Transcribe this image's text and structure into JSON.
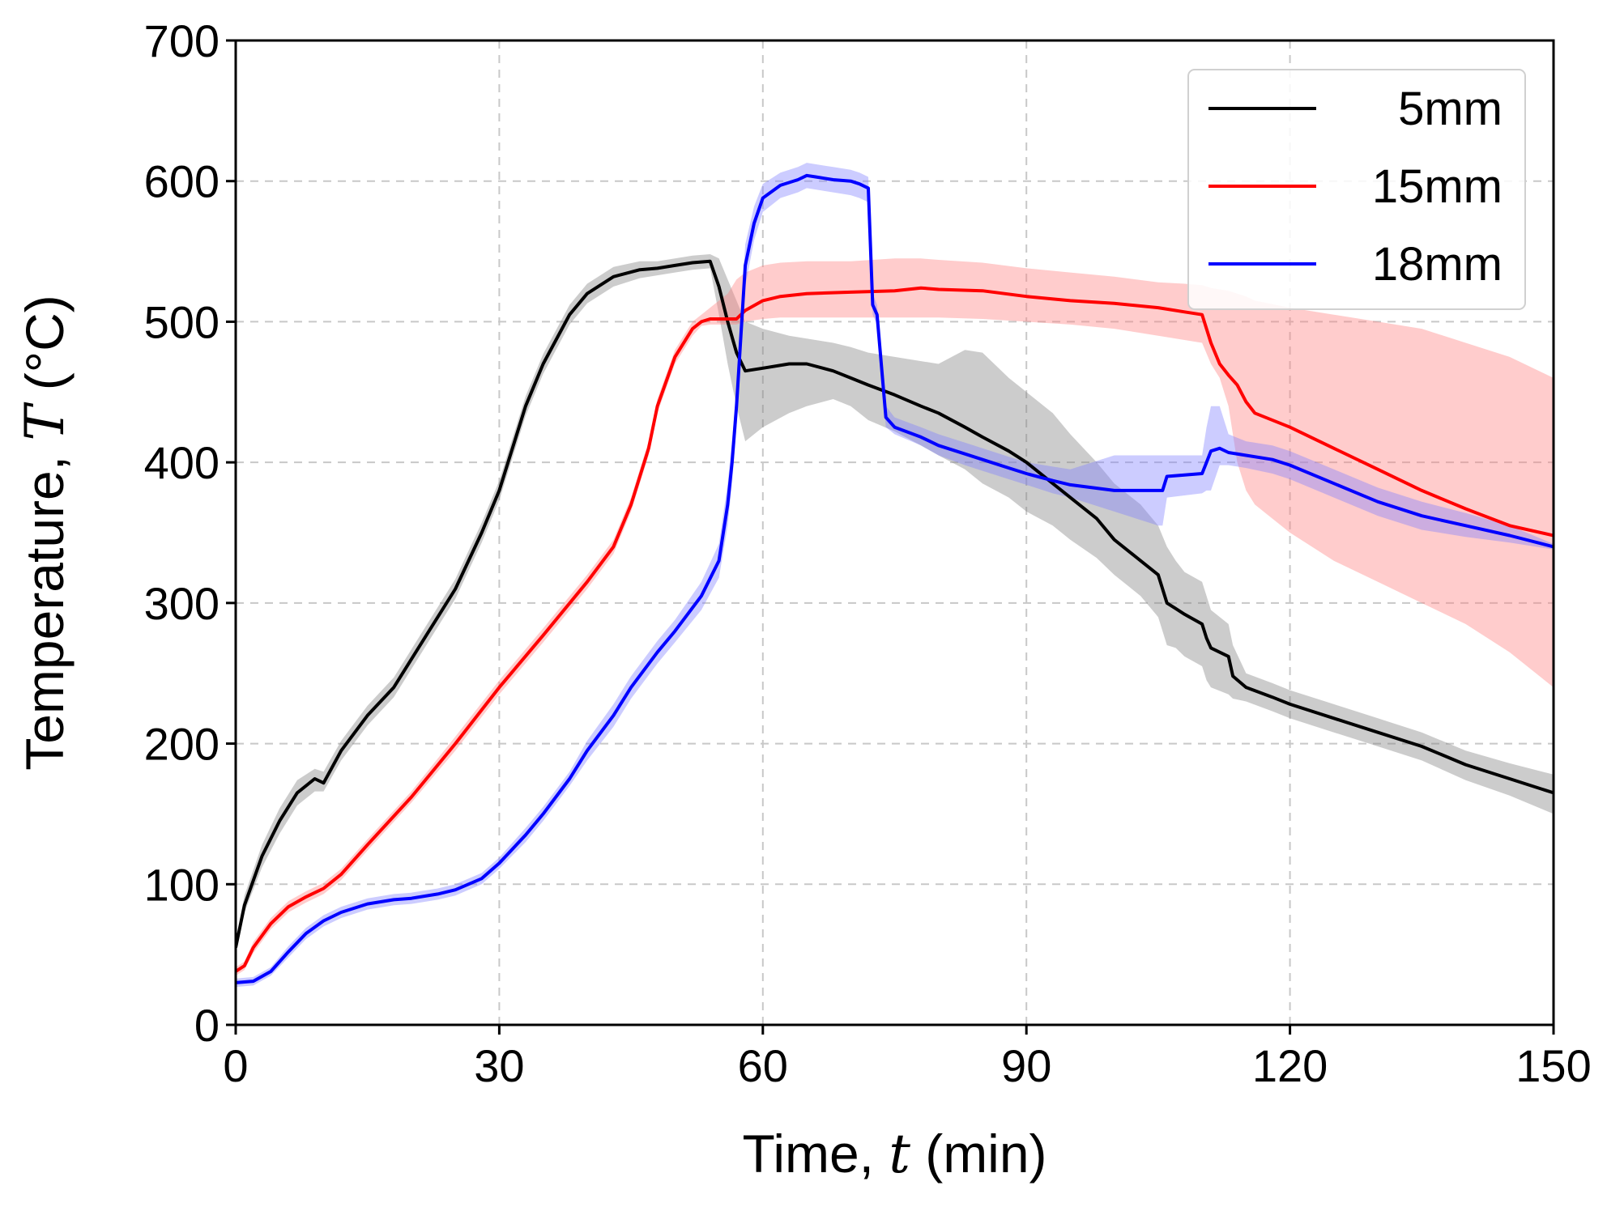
{
  "chart_data": {
    "type": "line",
    "title": "",
    "xlabel": "Time, ",
    "xlabel_symbol": "t",
    "xlabel_unit": " (min)",
    "ylabel": "Temperature, ",
    "ylabel_symbol": "T",
    "ylabel_unit": " (°C)",
    "xlim": [
      0,
      150
    ],
    "ylim": [
      0,
      700
    ],
    "xticks": [
      0,
      30,
      60,
      90,
      120,
      150
    ],
    "yticks": [
      0,
      100,
      200,
      300,
      400,
      500,
      600,
      700
    ],
    "grid": true,
    "legend_position": "top-right",
    "series": [
      {
        "name": "5mm",
        "color": "#000000",
        "band_color": "#808080",
        "x": [
          0,
          1,
          3,
          5,
          7,
          9,
          10,
          12,
          15,
          18,
          20,
          22,
          25,
          28,
          30,
          33,
          35,
          38,
          40,
          43,
          46,
          48,
          50,
          52,
          54,
          55,
          56,
          57,
          58,
          60,
          63,
          65,
          68,
          70,
          72,
          75,
          78,
          80,
          83,
          85,
          88,
          90,
          93,
          95,
          98,
          100,
          103,
          105,
          106,
          107,
          108,
          110,
          110.5,
          111,
          113,
          113.5,
          115,
          118,
          120,
          125,
          130,
          135,
          140,
          145,
          150
        ],
        "y": [
          55,
          85,
          120,
          145,
          165,
          175,
          172,
          195,
          220,
          240,
          260,
          280,
          310,
          350,
          380,
          440,
          470,
          505,
          520,
          532,
          537,
          538,
          540,
          542,
          543,
          525,
          500,
          478,
          465,
          467,
          470,
          470,
          465,
          460,
          455,
          448,
          440,
          435,
          425,
          418,
          408,
          400,
          385,
          375,
          360,
          345,
          330,
          320,
          300,
          296,
          292,
          285,
          275,
          268,
          262,
          248,
          240,
          233,
          228,
          218,
          208,
          198,
          185,
          175,
          165
        ],
        "lower": [
          50,
          80,
          112,
          136,
          156,
          166,
          166,
          188,
          213,
          233,
          253,
          273,
          303,
          343,
          373,
          433,
          463,
          498,
          513,
          525,
          531,
          533,
          535,
          537,
          538,
          505,
          470,
          440,
          415,
          425,
          435,
          440,
          445,
          440,
          430,
          422,
          412,
          405,
          395,
          385,
          375,
          365,
          355,
          345,
          332,
          320,
          305,
          290,
          270,
          268,
          262,
          255,
          245,
          240,
          235,
          232,
          230,
          223,
          218,
          208,
          198,
          188,
          174,
          163,
          150
        ],
        "upper": [
          60,
          92,
          128,
          154,
          174,
          182,
          180,
          202,
          227,
          247,
          267,
          287,
          317,
          357,
          387,
          447,
          477,
          512,
          527,
          539,
          543,
          543,
          545,
          547,
          548,
          545,
          530,
          515,
          500,
          495,
          490,
          488,
          485,
          482,
          478,
          475,
          472,
          470,
          480,
          478,
          460,
          450,
          435,
          420,
          400,
          385,
          370,
          355,
          340,
          330,
          322,
          315,
          305,
          295,
          285,
          270,
          250,
          243,
          238,
          228,
          218,
          208,
          195,
          186,
          178
        ]
      },
      {
        "name": "15mm",
        "color": "#ff0000",
        "band_color": "#ff8080",
        "x": [
          0,
          1,
          2,
          4,
          6,
          8,
          10,
          12,
          15,
          20,
          25,
          30,
          35,
          40,
          43,
          45,
          47,
          48,
          50,
          52,
          53,
          54,
          55,
          56,
          57,
          58,
          60,
          62,
          65,
          70,
          75,
          78,
          80,
          85,
          90,
          95,
          100,
          105,
          108,
          110,
          111,
          112,
          113,
          114,
          115,
          116,
          120,
          125,
          130,
          135,
          140,
          145,
          150
        ],
        "y": [
          38,
          42,
          55,
          72,
          84,
          91,
          97,
          107,
          128,
          162,
          200,
          240,
          277,
          315,
          340,
          370,
          410,
          440,
          475,
          495,
          500,
          502,
          502,
          502,
          502,
          508,
          515,
          518,
          520,
          521,
          522,
          524,
          523,
          522,
          518,
          515,
          513,
          510,
          507,
          505,
          485,
          470,
          462,
          455,
          443,
          435,
          425,
          410,
          395,
          380,
          367,
          355,
          348
        ],
        "lower": [
          35,
          39,
          51,
          68,
          80,
          87,
          93,
          103,
          124,
          158,
          195,
          235,
          272,
          310,
          335,
          365,
          405,
          435,
          470,
          490,
          497,
          498,
          498,
          498,
          498,
          500,
          502,
          503,
          503,
          503,
          503,
          503,
          503,
          502,
          500,
          498,
          495,
          490,
          487,
          485,
          470,
          460,
          440,
          400,
          380,
          370,
          350,
          330,
          315,
          300,
          285,
          265,
          240
        ],
        "upper": [
          41,
          45,
          59,
          76,
          88,
          95,
          101,
          111,
          132,
          166,
          205,
          245,
          282,
          320,
          345,
          375,
          415,
          445,
          480,
          500,
          505,
          510,
          515,
          520,
          530,
          535,
          540,
          542,
          543,
          543,
          545,
          545,
          544,
          542,
          538,
          535,
          532,
          528,
          527,
          526,
          524,
          523,
          522,
          520,
          518,
          515,
          510,
          505,
          500,
          495,
          485,
          475,
          460
        ]
      },
      {
        "name": "18mm",
        "color": "#0000ff",
        "band_color": "#8080ff",
        "x": [
          0,
          2,
          4,
          6,
          8,
          10,
          12,
          15,
          18,
          20,
          23,
          25,
          28,
          30,
          33,
          35,
          38,
          40,
          43,
          45,
          48,
          50,
          53,
          55,
          56,
          56.5,
          57,
          57.5,
          58,
          59,
          60,
          62,
          64,
          65,
          66,
          68,
          70,
          71,
          72,
          72.5,
          73,
          74,
          75,
          78,
          80,
          83,
          85,
          88,
          90,
          93,
          95,
          100,
          105,
          105.5,
          106,
          110,
          110.5,
          111,
          112,
          113,
          115,
          118,
          120,
          125,
          130,
          135,
          140,
          145,
          150
        ],
        "y": [
          30,
          31,
          38,
          52,
          65,
          74,
          80,
          86,
          89,
          90,
          93,
          96,
          104,
          115,
          135,
          150,
          175,
          195,
          220,
          240,
          265,
          280,
          305,
          330,
          370,
          400,
          440,
          490,
          540,
          570,
          588,
          597,
          601,
          604,
          603,
          601,
          600,
          598,
          595,
          512,
          505,
          432,
          425,
          418,
          412,
          406,
          402,
          396,
          392,
          387,
          384,
          380,
          380,
          380,
          390,
          392,
          400,
          408,
          410,
          407,
          405,
          402,
          398,
          385,
          372,
          362,
          355,
          348,
          340
        ],
        "lower": [
          27,
          28,
          35,
          48,
          61,
          70,
          76,
          82,
          85,
          86,
          89,
          92,
          100,
          111,
          130,
          145,
          170,
          188,
          212,
          232,
          257,
          272,
          295,
          318,
          355,
          385,
          425,
          475,
          525,
          558,
          578,
          588,
          592,
          595,
          594,
          592,
          590,
          588,
          585,
          505,
          498,
          425,
          420,
          412,
          405,
          398,
          394,
          388,
          384,
          378,
          375,
          365,
          355,
          355,
          375,
          378,
          380,
          380,
          398,
          398,
          396,
          392,
          388,
          375,
          362,
          352,
          347,
          343,
          338
        ],
        "upper": [
          33,
          34,
          41,
          56,
          69,
          78,
          84,
          90,
          93,
          94,
          97,
          100,
          108,
          119,
          140,
          155,
          180,
          202,
          228,
          248,
          273,
          288,
          315,
          342,
          385,
          415,
          455,
          505,
          555,
          582,
          598,
          606,
          610,
          613,
          612,
          610,
          608,
          606,
          603,
          520,
          512,
          440,
          432,
          425,
          420,
          414,
          410,
          404,
          400,
          397,
          395,
          405,
          405,
          405,
          405,
          405,
          425,
          440,
          440,
          420,
          415,
          412,
          408,
          395,
          382,
          372,
          364,
          355,
          342
        ]
      }
    ]
  }
}
